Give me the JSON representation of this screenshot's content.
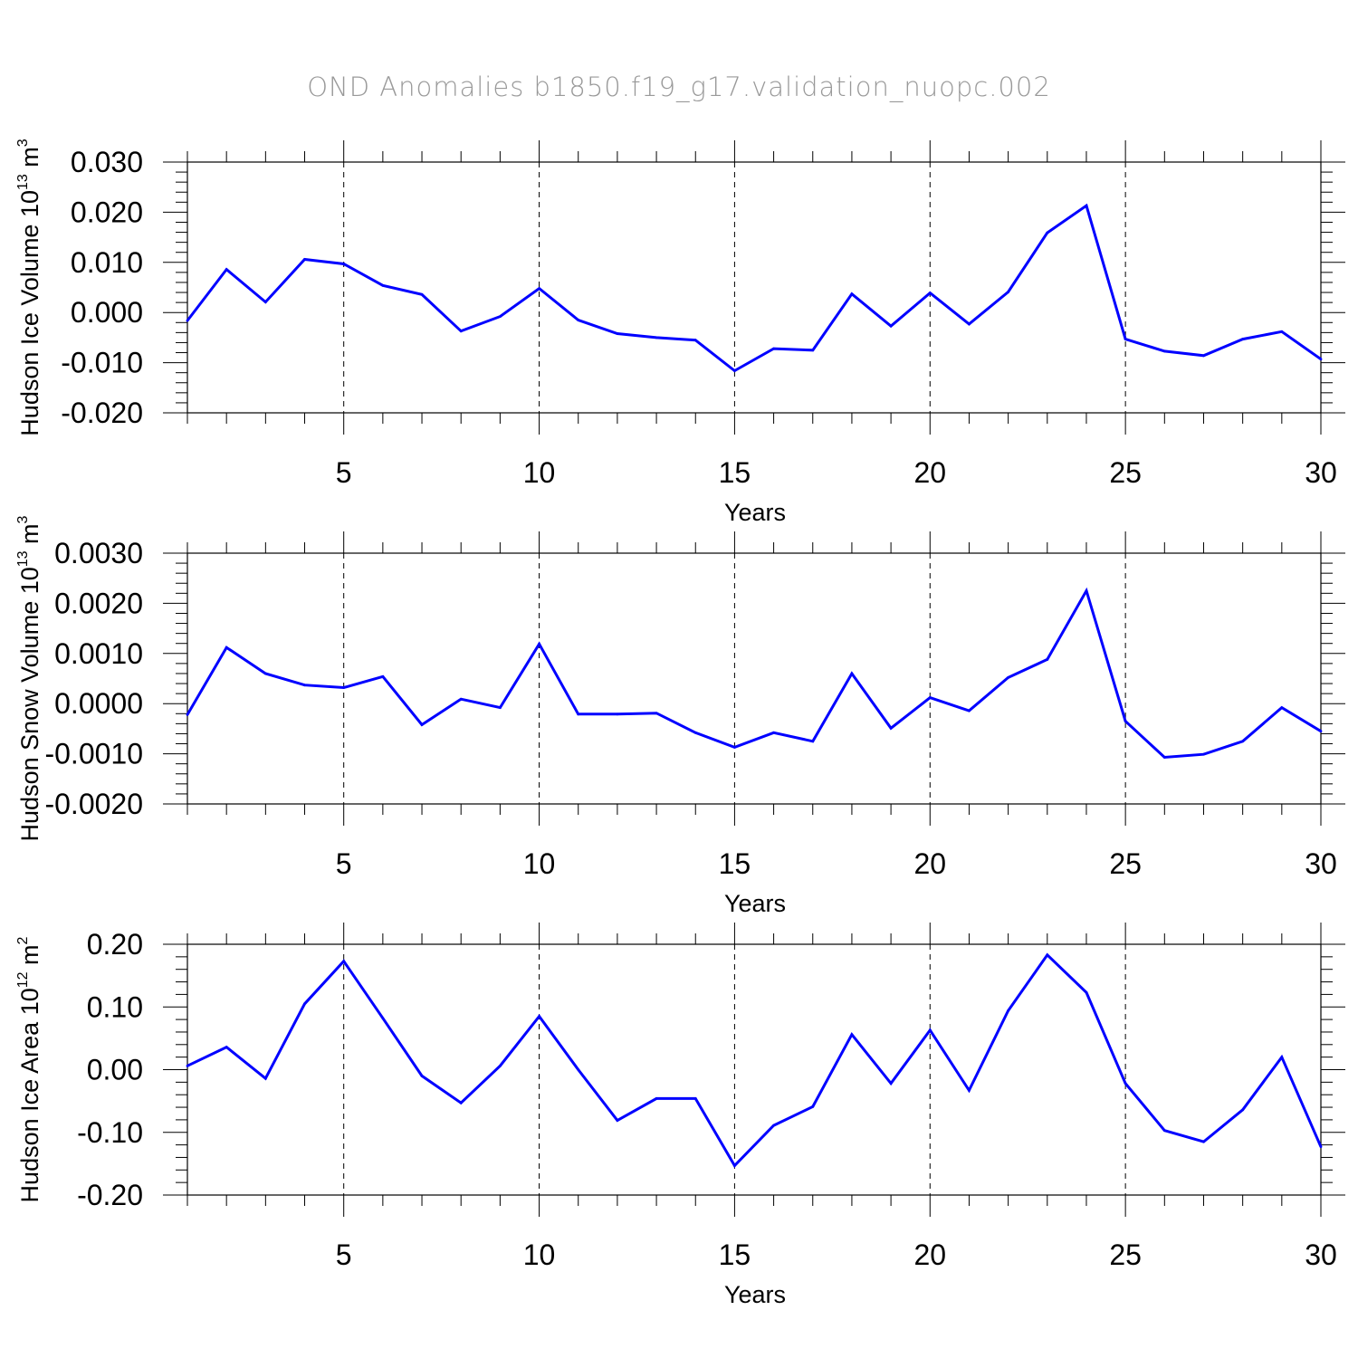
{
  "figure": {
    "title": "OND Anomalies b1850.f19_g17.validation_nuopc.002"
  },
  "chart_data": [
    {
      "type": "line",
      "title": "",
      "xlabel": "Years",
      "ylabel": "Hudson Ice Volume",
      "ylabel_unit": {
        "base": "10",
        "exp": "13",
        "unit": "m",
        "unit_exp": "3"
      },
      "xlim": [
        1,
        30
      ],
      "ylim": [
        -0.02,
        0.03
      ],
      "x_ticks": [
        5,
        10,
        15,
        20,
        25,
        30
      ],
      "x_tick_labels": [
        "5",
        "10",
        "15",
        "20",
        "25",
        "30"
      ],
      "y_ticks": [
        -0.02,
        -0.01,
        0.0,
        0.01,
        0.02,
        0.03
      ],
      "y_tick_labels": [
        "-0.020",
        "-0.010",
        "0.000",
        "0.010",
        "0.020",
        "0.030"
      ],
      "grid": "dashed vertical at major x ticks",
      "series": [
        {
          "color": "#0000ff",
          "x": [
            1,
            2,
            3,
            4,
            5,
            6,
            7,
            8,
            9,
            10,
            11,
            12,
            13,
            14,
            15,
            16,
            17,
            18,
            19,
            20,
            21,
            22,
            23,
            24,
            25,
            26,
            27,
            28,
            29,
            30
          ],
          "values": [
            -0.0016,
            0.0086,
            0.0021,
            0.0106,
            0.0097,
            0.0054,
            0.0036,
            -0.0037,
            -0.0008,
            0.0048,
            -0.0015,
            -0.0042,
            -0.005,
            -0.0055,
            -0.0116,
            -0.0072,
            -0.0075,
            0.0037,
            -0.0027,
            0.0039,
            -0.0023,
            0.0041,
            0.0159,
            0.0213,
            -0.0053,
            -0.0077,
            -0.0086,
            -0.0053,
            -0.0038,
            -0.0093
          ]
        }
      ]
    },
    {
      "type": "line",
      "title": "",
      "xlabel": "Years",
      "ylabel": "Hudson Snow Volume",
      "ylabel_unit": {
        "base": "10",
        "exp": "13",
        "unit": "m",
        "unit_exp": "3"
      },
      "xlim": [
        1,
        30
      ],
      "ylim": [
        -0.002,
        0.003
      ],
      "x_ticks": [
        5,
        10,
        15,
        20,
        25,
        30
      ],
      "x_tick_labels": [
        "5",
        "10",
        "15",
        "20",
        "25",
        "30"
      ],
      "y_ticks": [
        -0.002,
        -0.001,
        0.0,
        0.001,
        0.002,
        0.003
      ],
      "y_tick_labels": [
        "-0.0020",
        "-0.0010",
        "0.0000",
        "0.0010",
        "0.0020",
        "0.0030"
      ],
      "grid": "dashed vertical at major x ticks",
      "series": [
        {
          "color": "#0000ff",
          "x": [
            1,
            2,
            3,
            4,
            5,
            6,
            7,
            8,
            9,
            10,
            11,
            12,
            13,
            14,
            15,
            16,
            17,
            18,
            19,
            20,
            21,
            22,
            23,
            24,
            25,
            26,
            27,
            28,
            29,
            30
          ],
          "values": [
            -0.00022,
            0.00112,
            0.0006,
            0.00037,
            0.00032,
            0.00054,
            -0.00042,
            9e-05,
            -8e-05,
            0.00119,
            -0.00021,
            -0.00021,
            -0.00019,
            -0.00058,
            -0.00087,
            -0.00058,
            -0.00075,
            0.0006,
            -0.00049,
            0.00012,
            -0.00014,
            0.00052,
            0.00088,
            0.00225,
            -0.00035,
            -0.00107,
            -0.00101,
            -0.00075,
            -8e-05,
            -0.00055
          ]
        }
      ]
    },
    {
      "type": "line",
      "title": "",
      "xlabel": "Years",
      "ylabel": "Hudson Ice Area",
      "ylabel_unit": {
        "base": "10",
        "exp": "12",
        "unit": "m",
        "unit_exp": "2"
      },
      "xlim": [
        1,
        30
      ],
      "ylim": [
        -0.2,
        0.2
      ],
      "x_ticks": [
        5,
        10,
        15,
        20,
        25,
        30
      ],
      "x_tick_labels": [
        "5",
        "10",
        "15",
        "20",
        "25",
        "30"
      ],
      "y_ticks": [
        -0.2,
        -0.1,
        0.0,
        0.1,
        0.2
      ],
      "y_tick_labels": [
        "-0.20",
        "-0.10",
        "0.00",
        "0.10",
        "0.20"
      ],
      "grid": "dashed vertical at major x ticks",
      "series": [
        {
          "color": "#0000ff",
          "x": [
            1,
            2,
            3,
            4,
            5,
            6,
            7,
            8,
            9,
            10,
            11,
            12,
            13,
            14,
            15,
            16,
            17,
            18,
            19,
            20,
            21,
            22,
            23,
            24,
            25,
            26,
            27,
            28,
            29,
            30
          ],
          "values": [
            0.006,
            0.036,
            -0.014,
            0.105,
            0.173,
            0.082,
            -0.01,
            -0.053,
            0.006,
            0.085,
            0.0,
            -0.081,
            -0.046,
            -0.046,
            -0.153,
            -0.089,
            -0.059,
            0.056,
            -0.022,
            0.063,
            -0.033,
            0.094,
            0.183,
            0.123,
            -0.022,
            -0.097,
            -0.115,
            -0.064,
            0.02,
            -0.123
          ]
        }
      ]
    }
  ]
}
